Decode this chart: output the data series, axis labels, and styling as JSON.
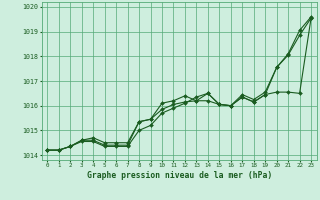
{
  "xlabel": "Graphe pression niveau de la mer (hPa)",
  "xlim": [
    -0.5,
    23.5
  ],
  "ylim": [
    1013.8,
    1020.2
  ],
  "yticks": [
    1014,
    1015,
    1016,
    1017,
    1018,
    1019,
    1020
  ],
  "xticks": [
    0,
    1,
    2,
    3,
    4,
    5,
    6,
    7,
    8,
    9,
    10,
    11,
    12,
    13,
    14,
    15,
    16,
    17,
    18,
    19,
    20,
    21,
    22,
    23
  ],
  "background_color": "#ceeede",
  "grid_color": "#55aa77",
  "line_color": "#1a5c20",
  "series": {
    "line1_smooth": [
      1014.2,
      1014.2,
      1014.35,
      1014.55,
      1014.55,
      1014.35,
      1014.35,
      1014.35,
      1015.0,
      1015.2,
      1015.7,
      1015.9,
      1016.1,
      1016.35,
      1016.5,
      1016.05,
      1016.0,
      1016.35,
      1016.15,
      1016.45,
      1017.55,
      1018.05,
      1018.85,
      1019.55
    ],
    "line2_smooth": [
      1014.2,
      1014.2,
      1014.35,
      1014.6,
      1014.6,
      1014.4,
      1014.4,
      1014.4,
      1015.35,
      1015.45,
      1015.85,
      1016.05,
      1016.15,
      1016.2,
      1016.2,
      1016.05,
      1016.0,
      1016.35,
      1016.15,
      1016.45,
      1016.55,
      1016.55,
      1016.5,
      1019.55
    ],
    "line3_steep": [
      1014.2,
      1014.2,
      1014.35,
      1014.6,
      1014.7,
      1014.5,
      1014.5,
      1014.5,
      1015.35,
      1015.45,
      1016.1,
      1016.2,
      1016.4,
      1016.2,
      1016.5,
      1016.05,
      1016.0,
      1016.45,
      1016.25,
      1016.55,
      1017.55,
      1018.1,
      1019.05,
      1019.6
    ]
  }
}
